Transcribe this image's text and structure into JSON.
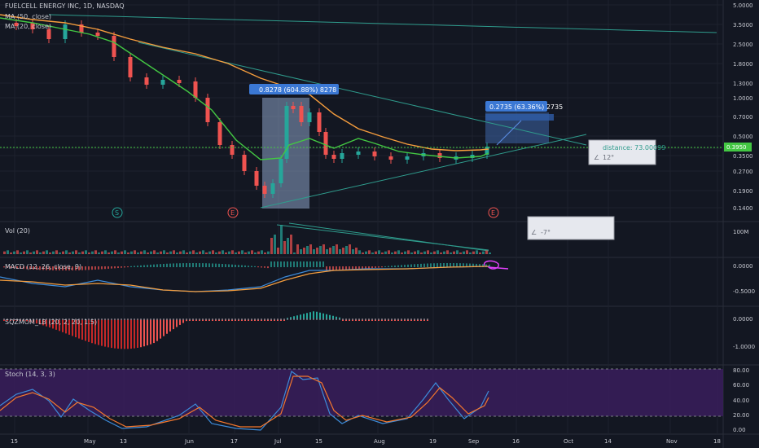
{
  "header": {
    "symbol_line": "FUELCELL ENERGY INC, 1D, NASDAQ",
    "ma50_label": "MA (50, close)",
    "ma20_label": "MA (20, close)"
  },
  "price_axis": [
    "5.0000",
    "3.5000",
    "2.5000",
    "1.8000",
    "1.3000",
    "1.0000",
    "0.7000",
    "0.5000",
    "0.3950",
    "0.3500",
    "0.2700",
    "0.1900",
    "0.1400"
  ],
  "last_price": "0.3950",
  "events": [
    "S",
    "E",
    "E",
    "E"
  ],
  "annotations": {
    "measure_1": "0.8278 (604.88%) 8278",
    "measure_2": "0.2735 (63.36%) 2735",
    "distance_label": "distance: 73.00099",
    "angle_1": "12°",
    "angle_2": "-7°"
  },
  "panes": {
    "vol": {
      "label": "Vol (20)",
      "axis": [
        "100M"
      ]
    },
    "macd": {
      "label": "MACD (12, 26, close, 9)",
      "axis": [
        "0.0000",
        "-0.5000"
      ]
    },
    "sqz": {
      "label": "SQZMOM_LB (20, 2, 20, 1.5)",
      "axis": [
        "0.0000",
        "-1.0000"
      ]
    },
    "stoch": {
      "label": "Stoch (14, 3, 3)",
      "axis": [
        "80.00",
        "60.00",
        "40.00",
        "20.00",
        "0.00"
      ]
    }
  },
  "time_axis": [
    "15",
    "May",
    "13",
    "Jun",
    "17",
    "Jul",
    "15",
    "Aug",
    "19",
    "Sep",
    "16",
    "Oct",
    "14",
    "Nov",
    "18"
  ],
  "colors": {
    "background": "#131722",
    "up": "#26a69a",
    "down": "#ef5350",
    "ma50": "#f59d3d",
    "ma20": "#43c743",
    "stoch_bg": "#3a1d5c",
    "measure_box": "#8da3c6"
  }
}
